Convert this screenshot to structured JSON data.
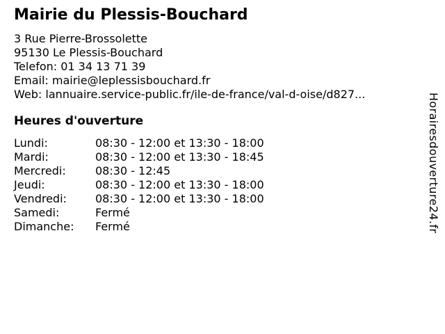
{
  "header": {
    "title": "Mairie du Plessis-Bouchard",
    "address_line1": "3 Rue Pierre-Brossolette",
    "address_line2": "95130 Le Plessis-Bouchard",
    "phone_label": "Telefon:",
    "phone_value": "01 34 13 71 39",
    "email_label": "Email:",
    "email_value": "mairie@leplessisbouchard.fr",
    "web_label": "Web:",
    "web_value": "lannuaire.service-public.fr/ile-de-france/val-d-oise/d827..."
  },
  "hours": {
    "heading": "Heures d'ouverture",
    "rows": [
      {
        "day": "Lundi:",
        "times": "08:30 - 12:00 et 13:30 - 18:00"
      },
      {
        "day": "Mardi:",
        "times": "08:30 - 12:00 et 13:30 - 18:45"
      },
      {
        "day": "Mercredi:",
        "times": "08:30 - 12:45"
      },
      {
        "day": "Jeudi:",
        "times": "08:30 - 12:00 et 13:30 - 18:00"
      },
      {
        "day": "Vendredi:",
        "times": "08:30 - 12:00 et 13:30 - 18:00"
      },
      {
        "day": "Samedi:",
        "times": "Fermé"
      },
      {
        "day": "Dimanche:",
        "times": "Fermé"
      }
    ]
  },
  "watermark": {
    "text": "Horairesdouverture24.fr"
  },
  "colors": {
    "text": "#000000",
    "background": "#ffffff"
  }
}
